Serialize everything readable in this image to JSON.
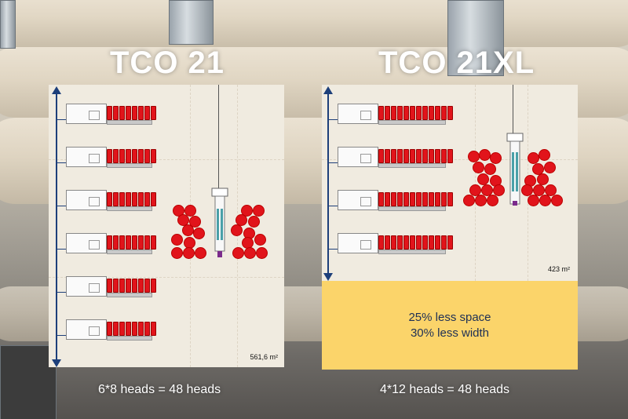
{
  "left_layout": {
    "title": "TCO 21",
    "area": "561,6 m²",
    "caption": "6*8 heads = 48 heads"
  },
  "right_layout": {
    "title": "TCO 21XL",
    "area": "423 m²",
    "caption": "4*12 heads = 48 heads",
    "benefit_line_1": "25% less space",
    "benefit_line_2": "30% less width"
  },
  "colors": {
    "panel_background": "#f0ebe0",
    "axis_arrow": "#1d3f7a",
    "bobbin_red": "#e1141b",
    "highlight_yellow": "#fbd46a"
  }
}
